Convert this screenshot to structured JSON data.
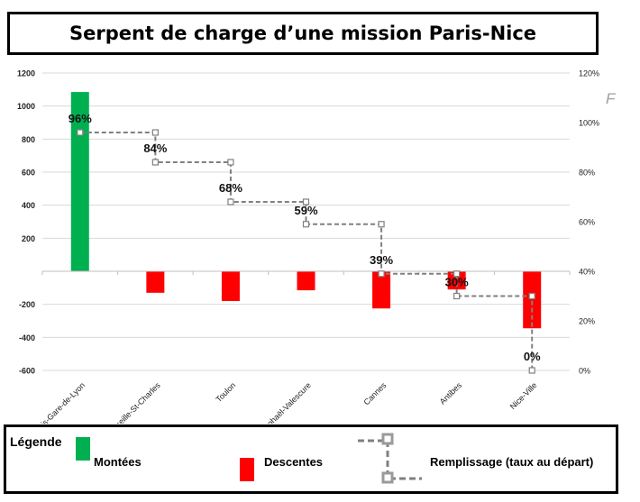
{
  "chart_data": {
    "type": "bar",
    "title": "Serpent de charge d’une mission Paris-Nice",
    "categories": [
      "Paris-Gare-de-Lyon",
      "Marseille-St-Charles",
      "Toulon",
      "St-Raphaël-Valescure",
      "Cannes",
      "Antibes",
      "Nice-Ville"
    ],
    "series": [
      {
        "name": "Montées",
        "type": "bar",
        "axis": "left",
        "color": "#00b050",
        "values": [
          1085,
          0,
          0,
          0,
          0,
          0,
          0
        ]
      },
      {
        "name": "Descentes",
        "type": "bar",
        "axis": "left",
        "color": "#ff0000",
        "values": [
          0,
          -130,
          -180,
          -115,
          -225,
          -110,
          -345
        ]
      },
      {
        "name": "Remplissage (taux au départ)",
        "type": "step-line",
        "axis": "right",
        "color": "#808080",
        "values": [
          96,
          84,
          68,
          59,
          39,
          30,
          0
        ],
        "labels": [
          "96%",
          "84%",
          "68%",
          "59%",
          "39%",
          "30%",
          "0%"
        ]
      }
    ],
    "y_left": {
      "ylim": [
        -600,
        1200
      ],
      "ticks": [
        -600,
        -400,
        -200,
        0,
        200,
        400,
        600,
        800,
        1000,
        1200
      ],
      "tick_labels": [
        "-600",
        "-400",
        "-200",
        "",
        "200",
        "400",
        "600",
        "800",
        "1000",
        "1200"
      ]
    },
    "y_right": {
      "ylim": [
        0,
        120
      ],
      "ticks": [
        0,
        20,
        40,
        60,
        80,
        100,
        120
      ],
      "tick_labels": [
        "0%",
        "20%",
        "40%",
        "60%",
        "80%",
        "100%",
        "120%"
      ]
    },
    "grid": true,
    "legend": "bottom"
  },
  "legend": {
    "heading": "Légende",
    "montees_label": "Montées",
    "descentes_label": "Descentes",
    "remplissage_label": "Remplissage (taux au départ)",
    "montees_color": "#00b050",
    "descentes_color": "#ff0000",
    "line_color": "#808080"
  },
  "stray_glyph": "F"
}
